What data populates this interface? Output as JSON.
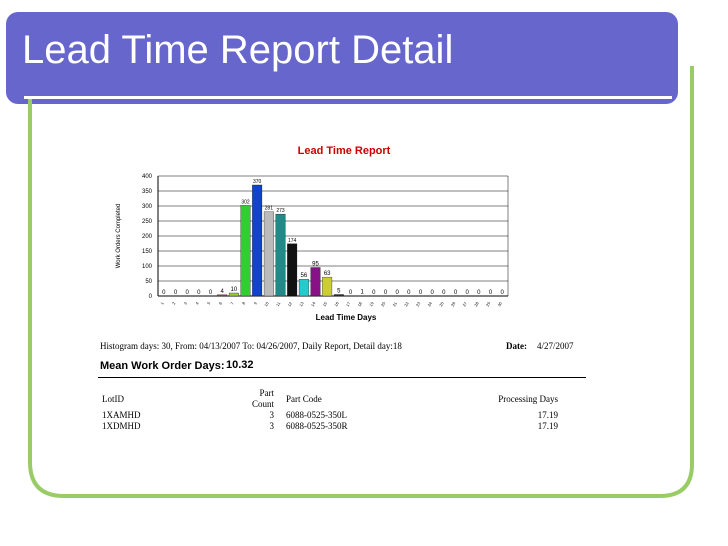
{
  "slide": {
    "title": "Lead Time Report Detail",
    "colors": {
      "header_band": "#6666cc",
      "frame_border": "#99cc66"
    }
  },
  "chart_data": {
    "type": "bar",
    "title": "Lead Time Report",
    "title_color": "#cc0000",
    "xlabel": "Lead Time Days",
    "ylabel": "Work Orders Completed",
    "ylim": [
      0,
      400
    ],
    "y_ticks": [
      "0",
      "50",
      "100",
      "150",
      "200",
      "250",
      "300",
      "350",
      "400"
    ],
    "grid": true,
    "categories": [
      "1",
      "2",
      "3",
      "4",
      "5",
      "6",
      "7",
      "8",
      "9",
      "10",
      "11",
      "12",
      "13",
      "14",
      "15",
      "16",
      "17",
      "18",
      "19",
      "20",
      "21",
      "22",
      "23",
      "24",
      "25",
      "26",
      "27",
      "28",
      "29",
      "30"
    ],
    "values": [
      0,
      0,
      0,
      0,
      0,
      4,
      10,
      302,
      370,
      281,
      273,
      174,
      56,
      95,
      63,
      5,
      0,
      1,
      0,
      0,
      0,
      0,
      0,
      0,
      0,
      0,
      0,
      0,
      0,
      0
    ],
    "value_labels": [
      "0",
      "0",
      "0",
      "0",
      "0",
      "4",
      "10",
      "302",
      "370",
      "281",
      "273",
      "174",
      "56",
      "95",
      "63",
      "5",
      "0",
      "1",
      "0",
      "0",
      "0",
      "0",
      "0",
      "0",
      "0",
      "0",
      "0",
      "0",
      "0",
      "0"
    ],
    "bar_colors": [
      "#888888",
      "#888888",
      "#888888",
      "#888888",
      "#888888",
      "#cc3333",
      "#99cc33",
      "#33cc33",
      "#1144cc",
      "#bbbbbb",
      "#228888",
      "#111111",
      "#22cccc",
      "#881188",
      "#cccc33",
      "#333333",
      "#888888",
      "#888888",
      "#888888",
      "#888888",
      "#888888",
      "#888888",
      "#888888",
      "#888888",
      "#888888",
      "#888888",
      "#888888",
      "#888888",
      "#888888",
      "#888888"
    ]
  },
  "report": {
    "stats_line": "Histogram days: 30, From: 04/13/2007 To: 04/26/2007, Daily Report, Detail day:18",
    "date_label": "Date:",
    "date_value": "4/27/2007",
    "mean_label": "Mean Work Order Days:",
    "mean_value": "10.32",
    "columns": [
      "LotID",
      "Part Count",
      "Part Code",
      "Processing Days"
    ],
    "rows": [
      {
        "lot": "1XAMHD",
        "count": "3",
        "code": "6088-0525-350L",
        "days": "17.19"
      },
      {
        "lot": "1XDMHD",
        "count": "3",
        "code": "6088-0525-350R",
        "days": "17.19"
      }
    ]
  }
}
